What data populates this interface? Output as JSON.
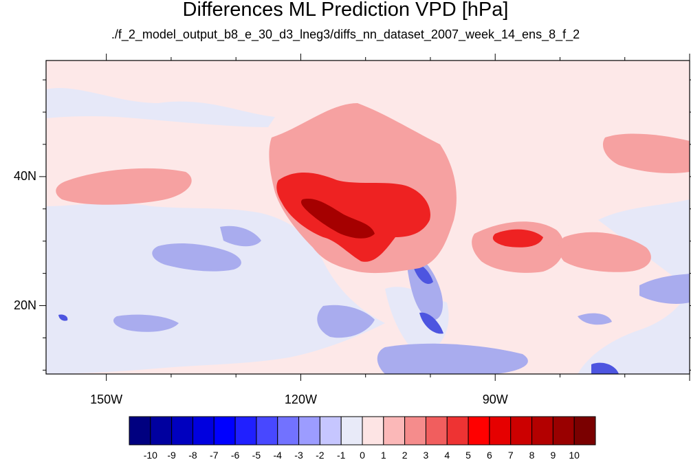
{
  "title": "Differences ML Prediction VPD [hPa]",
  "subtitle": "./f_2_model_output_b8_e_30_d3_lneg3/diffs_nn_dataset_2007_week_14_ens_8_f_2",
  "lat_labels": [
    {
      "text": "40N",
      "deg": 40
    },
    {
      "text": "20N",
      "deg": 20
    }
  ],
  "lon_labels": [
    {
      "text": "150W",
      "deg": -150
    },
    {
      "text": "120W",
      "deg": -120
    },
    {
      "text": "90W",
      "deg": -90
    }
  ],
  "colorbar": {
    "labels": [
      "-10",
      "-9",
      "-8",
      "-7",
      "-6",
      "-5",
      "-4",
      "-3",
      "-2",
      "-1",
      "0",
      "1",
      "2",
      "3",
      "4",
      "5",
      "6",
      "7",
      "8",
      "9",
      "10"
    ],
    "colors": [
      "#000080",
      "#00009f",
      "#0000bf",
      "#0000df",
      "#0000ff",
      "#2020ff",
      "#4848ff",
      "#7272ff",
      "#9c9cff",
      "#c6c6ff",
      "#e8eaf8",
      "#fde4e4",
      "#fbb8b8",
      "#f58c8c",
      "#f15e5e",
      "#ee3333",
      "#ff0000",
      "#e60000",
      "#cc0000",
      "#b30000",
      "#990000",
      "#7a0000"
    ]
  },
  "colors": {
    "background_positive": "#fde8e8",
    "negative_light": "#e6e8f8",
    "negative_mid": "#a9acee",
    "negative_strong": "#4d55e0",
    "positive_mid": "#f6a1a1",
    "positive_strong": "#ee2222",
    "positive_max": "#a50000"
  }
}
